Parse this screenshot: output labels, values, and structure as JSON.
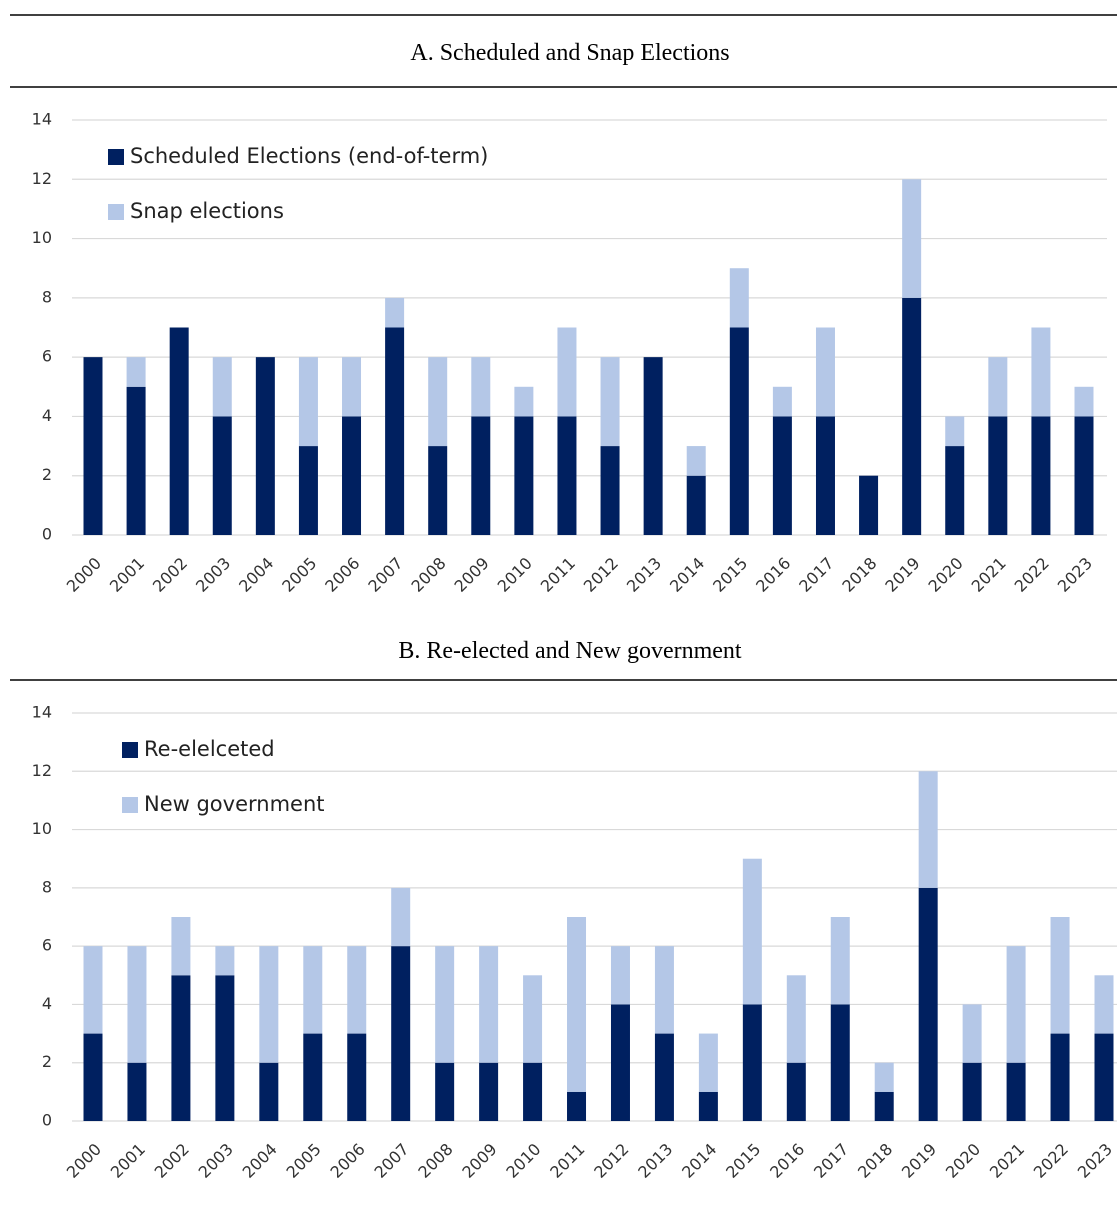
{
  "chart_data": [
    {
      "type": "stacked_bar",
      "title": "A. Scheduled and Snap Elections",
      "categories": [
        "2000",
        "2001",
        "2002",
        "2003",
        "2004",
        "2005",
        "2006",
        "2007",
        "2008",
        "2009",
        "2010",
        "2011",
        "2012",
        "2013",
        "2014",
        "2015",
        "2016",
        "2017",
        "2018",
        "2019",
        "2020",
        "2021",
        "2022",
        "2023"
      ],
      "series": [
        {
          "name": "Scheduled Elections (end-of-term)",
          "color": "#002060",
          "values": [
            6,
            5,
            7,
            4,
            6,
            3,
            4,
            7,
            3,
            4,
            4,
            4,
            3,
            6,
            2,
            7,
            4,
            4,
            2,
            8,
            3,
            4,
            4,
            4
          ]
        },
        {
          "name": "Snap elections",
          "color": "#b4c7e7",
          "values": [
            0,
            1,
            0,
            2,
            0,
            3,
            2,
            1,
            3,
            2,
            1,
            3,
            3,
            0,
            1,
            2,
            1,
            3,
            0,
            4,
            1,
            2,
            3,
            1
          ]
        }
      ],
      "ylim": [
        0,
        14
      ],
      "yticks": [
        0,
        2,
        4,
        6,
        8,
        10,
        12,
        14
      ],
      "grid": true,
      "legend": "upper left"
    },
    {
      "type": "stacked_bar",
      "title": "B.  Re-elected and New government",
      "categories": [
        "2000",
        "2001",
        "2002",
        "2003",
        "2004",
        "2005",
        "2006",
        "2007",
        "2008",
        "2009",
        "2010",
        "2011",
        "2012",
        "2013",
        "2014",
        "2015",
        "2016",
        "2017",
        "2018",
        "2019",
        "2020",
        "2021",
        "2022",
        "2023"
      ],
      "series": [
        {
          "name": "Re-elelceted",
          "color": "#002060",
          "values": [
            3,
            2,
            5,
            5,
            2,
            3,
            3,
            6,
            2,
            2,
            2,
            1,
            4,
            3,
            1,
            4,
            2,
            4,
            1,
            8,
            2,
            2,
            3,
            3
          ]
        },
        {
          "name": "New government",
          "color": "#b4c7e7",
          "values": [
            3,
            4,
            2,
            1,
            4,
            3,
            3,
            2,
            4,
            4,
            3,
            6,
            2,
            3,
            2,
            5,
            3,
            3,
            1,
            4,
            2,
            4,
            4,
            2
          ]
        }
      ],
      "ylim": [
        0,
        14
      ],
      "yticks": [
        0,
        2,
        4,
        6,
        8,
        10,
        12,
        14
      ],
      "grid": true,
      "legend": "upper left"
    }
  ]
}
